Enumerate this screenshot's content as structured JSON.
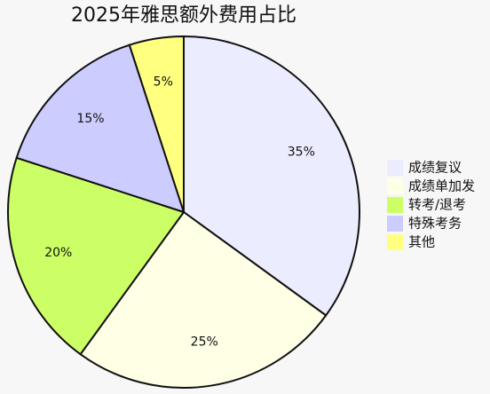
{
  "chart_data": {
    "type": "pie",
    "title": "2025年雅思额外费用占比",
    "categories": [
      "成绩复议",
      "成绩单加发",
      "转考/退考",
      "特殊考务",
      "其他"
    ],
    "values": [
      35,
      25,
      20,
      15,
      5
    ],
    "value_labels": [
      "35%",
      "25%",
      "20%",
      "15%",
      "5%"
    ],
    "colors": [
      "#ececff",
      "#ffffe6",
      "#ccff66",
      "#ccccff",
      "#ffff80"
    ]
  }
}
